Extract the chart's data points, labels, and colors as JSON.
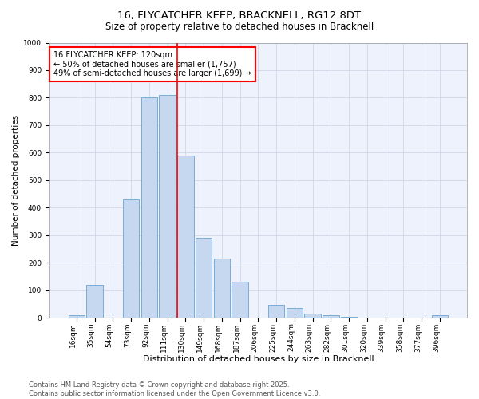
{
  "title": "16, FLYCATCHER KEEP, BRACKNELL, RG12 8DT",
  "subtitle": "Size of property relative to detached houses in Bracknell",
  "xlabel": "Distribution of detached houses by size in Bracknell",
  "ylabel": "Number of detached properties",
  "categories": [
    "16sqm",
    "35sqm",
    "54sqm",
    "73sqm",
    "92sqm",
    "111sqm",
    "130sqm",
    "149sqm",
    "168sqm",
    "187sqm",
    "206sqm",
    "225sqm",
    "244sqm",
    "263sqm",
    "282sqm",
    "301sqm",
    "320sqm",
    "339sqm",
    "358sqm",
    "377sqm",
    "396sqm"
  ],
  "values": [
    10,
    120,
    0,
    430,
    800,
    810,
    590,
    290,
    215,
    130,
    0,
    47,
    35,
    15,
    8,
    4,
    2,
    0,
    0,
    0,
    10
  ],
  "bar_color": "#c5d8f0",
  "bar_edge_color": "#7aadd4",
  "vline_color": "red",
  "vline_x": 5.55,
  "annotation_text": "16 FLYCATCHER KEEP: 120sqm\n← 50% of detached houses are smaller (1,757)\n49% of semi-detached houses are larger (1,699) →",
  "ylim": [
    0,
    1000
  ],
  "yticks": [
    0,
    100,
    200,
    300,
    400,
    500,
    600,
    700,
    800,
    900,
    1000
  ],
  "grid_color": "#d0d8e8",
  "bg_color": "#eef2fc",
  "footer": "Contains HM Land Registry data © Crown copyright and database right 2025.\nContains public sector information licensed under the Open Government Licence v3.0.",
  "title_fontsize": 9.5,
  "subtitle_fontsize": 8.5,
  "xlabel_fontsize": 8,
  "ylabel_fontsize": 7.5,
  "tick_fontsize": 6.5,
  "annotation_fontsize": 7,
  "footer_fontsize": 6
}
